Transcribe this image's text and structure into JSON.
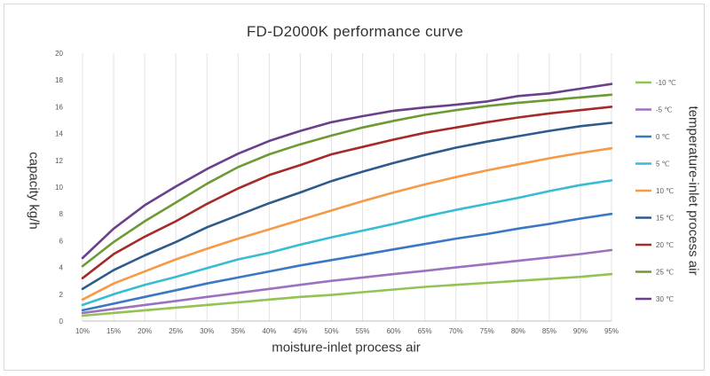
{
  "chart_data": {
    "type": "line",
    "title": "FD-D2000K performance curve",
    "xlabel": "moisture-inlet process air",
    "ylabel": "capacity kg/h",
    "legend_title": "temperature-inlet process air",
    "legend_position": "right",
    "grid": "vertical",
    "categories": [
      "10%",
      "15%",
      "20%",
      "25%",
      "30%",
      "35%",
      "40%",
      "45%",
      "50%",
      "55%",
      "60%",
      "65%",
      "70%",
      "75%",
      "80%",
      "85%",
      "90%",
      "95%"
    ],
    "yticks": [
      "0",
      "2",
      "4",
      "6",
      "8",
      "10",
      "12",
      "14",
      "16",
      "18",
      "20"
    ],
    "ylim": [
      0,
      20
    ],
    "series": [
      {
        "name": "-10 ℃",
        "color": "#92c353",
        "values": [
          0.4,
          0.6,
          0.8,
          1.0,
          1.2,
          1.4,
          1.6,
          1.8,
          1.95,
          2.15,
          2.35,
          2.55,
          2.7,
          2.85,
          3.0,
          3.15,
          3.3,
          3.5
        ]
      },
      {
        "name": "-5 ℃",
        "color": "#9b72c0",
        "values": [
          0.6,
          0.9,
          1.2,
          1.5,
          1.8,
          2.1,
          2.4,
          2.7,
          3.0,
          3.25,
          3.5,
          3.75,
          4.0,
          4.25,
          4.5,
          4.75,
          5.0,
          5.3
        ]
      },
      {
        "name": "0 ℃",
        "color": "#3a78c3",
        "values": [
          0.8,
          1.3,
          1.8,
          2.3,
          2.8,
          3.25,
          3.7,
          4.15,
          4.55,
          4.95,
          5.35,
          5.75,
          6.15,
          6.5,
          6.9,
          7.25,
          7.65,
          8.0
        ]
      },
      {
        "name": "5 ℃",
        "color": "#37bdd2",
        "values": [
          1.2,
          2.0,
          2.7,
          3.3,
          3.95,
          4.6,
          5.1,
          5.7,
          6.25,
          6.75,
          7.25,
          7.8,
          8.3,
          8.75,
          9.2,
          9.7,
          10.15,
          10.5
        ]
      },
      {
        "name": "10 ℃",
        "color": "#f79a46",
        "values": [
          1.6,
          2.8,
          3.7,
          4.6,
          5.4,
          6.15,
          6.85,
          7.55,
          8.25,
          8.95,
          9.6,
          10.2,
          10.75,
          11.25,
          11.7,
          12.15,
          12.55,
          12.9
        ]
      },
      {
        "name": "15 ℃",
        "color": "#2d5b8c",
        "values": [
          2.4,
          3.8,
          4.9,
          5.9,
          7.0,
          7.9,
          8.8,
          9.6,
          10.45,
          11.15,
          11.8,
          12.4,
          12.95,
          13.4,
          13.8,
          14.2,
          14.55,
          14.8
        ]
      },
      {
        "name": "20 ℃",
        "color": "#a52a2a",
        "values": [
          3.2,
          5.0,
          6.3,
          7.45,
          8.75,
          9.9,
          10.9,
          11.65,
          12.45,
          13.0,
          13.55,
          14.05,
          14.45,
          14.85,
          15.2,
          15.5,
          15.75,
          16.0
        ]
      },
      {
        "name": "25 ℃",
        "color": "#6e9a34",
        "values": [
          4.1,
          5.9,
          7.45,
          8.85,
          10.25,
          11.5,
          12.45,
          13.2,
          13.85,
          14.45,
          14.95,
          15.4,
          15.75,
          16.05,
          16.3,
          16.5,
          16.7,
          16.9
        ]
      },
      {
        "name": "30 ℃",
        "color": "#6a3f8c",
        "values": [
          4.7,
          6.9,
          8.65,
          10.05,
          11.35,
          12.5,
          13.45,
          14.2,
          14.85,
          15.3,
          15.7,
          15.95,
          16.15,
          16.4,
          16.8,
          17.0,
          17.35,
          17.7
        ]
      }
    ]
  }
}
